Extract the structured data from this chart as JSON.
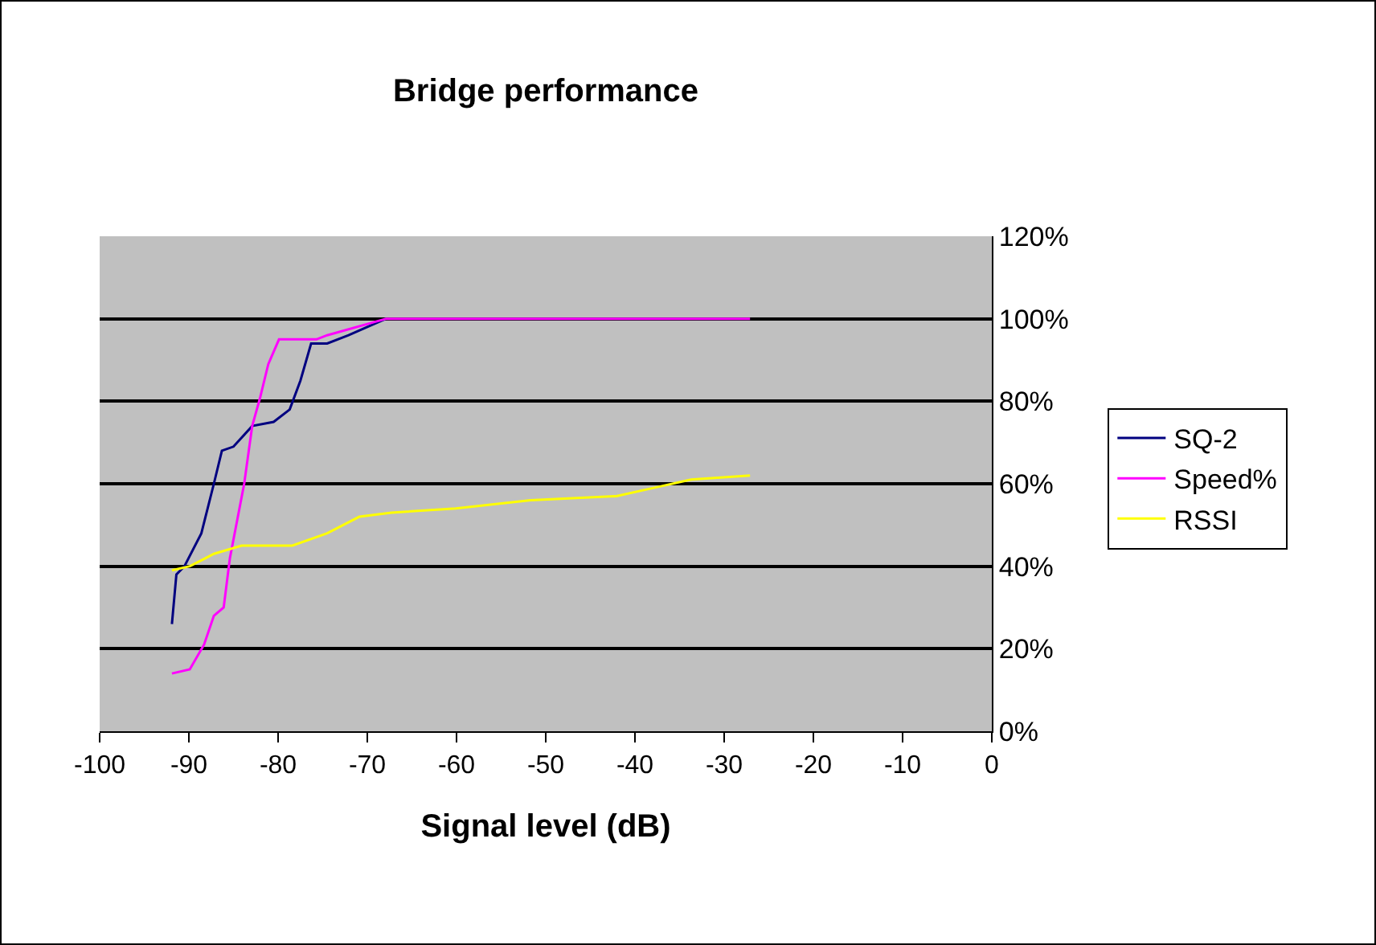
{
  "chart_data": {
    "type": "line",
    "title": "Bridge performance",
    "xlabel": "Signal level (dB)",
    "xlim": [
      -100,
      0
    ],
    "xticks": [
      -100,
      -90,
      -80,
      -70,
      -60,
      -50,
      -40,
      -30,
      -20,
      -10,
      0
    ],
    "ylim": [
      0,
      120
    ],
    "yticks": [
      {
        "value": 0,
        "label": "0%"
      },
      {
        "value": 20,
        "label": "20%"
      },
      {
        "value": 40,
        "label": "40%"
      },
      {
        "value": 60,
        "label": "60%"
      },
      {
        "value": 80,
        "label": "80%"
      },
      {
        "value": 100,
        "label": "100%"
      },
      {
        "value": 120,
        "label": "120%"
      }
    ],
    "grid": "y",
    "legend": "right",
    "marker": "none",
    "line_style": "solid",
    "series": [
      {
        "name": "SQ-2",
        "color": "#000080",
        "x": [
          -91.9,
          -91.4,
          -90.5,
          -88.6,
          -87.2,
          -86.3,
          -85,
          -82.9,
          -80.5,
          -78.7,
          -77.5,
          -76.3,
          -74.5,
          -72.1,
          -67.9
        ],
        "values": [
          26,
          38,
          40,
          48,
          60,
          68,
          69,
          74,
          75,
          78,
          85,
          94,
          94,
          96,
          100
        ]
      },
      {
        "name": "Speed%",
        "color": "#ff00ff",
        "x": [
          -91.9,
          -89.9,
          -88.3,
          -87.2,
          -86.1,
          -85.4,
          -83.8,
          -82.9,
          -82,
          -81.1,
          -79.9,
          -78.7,
          -75.7,
          -74.5,
          -67.9,
          -27.1
        ],
        "values": [
          14,
          15,
          21,
          28,
          30,
          42,
          60,
          74,
          81,
          89,
          95,
          95,
          95,
          96,
          100,
          100
        ]
      },
      {
        "name": "RSSI",
        "color": "#ffff00",
        "x": [
          -91.9,
          -89.9,
          -87.2,
          -84.1,
          -78.4,
          -74.5,
          -70.9,
          -67.3,
          -60.1,
          -51.7,
          -42.1,
          -37.9,
          -33.7,
          -27.1
        ],
        "values": [
          39,
          40,
          43,
          45,
          45,
          48,
          52,
          53,
          54,
          56,
          57,
          59,
          61,
          62
        ]
      }
    ]
  }
}
